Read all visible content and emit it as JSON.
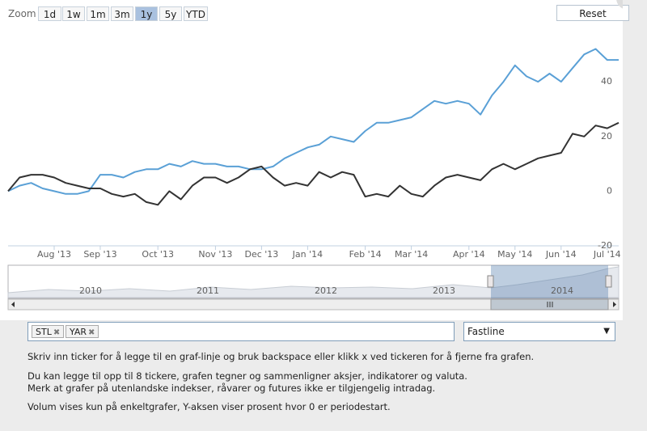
{
  "toolbar": {
    "zoom_label": "Zoom",
    "buttons": [
      "1d",
      "1w",
      "1m",
      "3m",
      "1y",
      "5y",
      "YTD"
    ],
    "active_button": 4,
    "reset": "Reset"
  },
  "chart_data": {
    "type": "line",
    "categories": [
      null,
      null,
      null,
      null,
      "Aug '13",
      null,
      null,
      null,
      "Sep '13",
      null,
      null,
      null,
      null,
      "Oct '13",
      null,
      null,
      null,
      null,
      "Nov '13",
      null,
      null,
      null,
      "Dec '13",
      null,
      null,
      null,
      "Jan '14",
      null,
      null,
      null,
      null,
      "Feb '14",
      null,
      null,
      null,
      "Mar '14",
      null,
      null,
      null,
      null,
      "Apr '14",
      null,
      null,
      null,
      "May '14",
      null,
      null,
      null,
      "Jun '14",
      null,
      null,
      null,
      "Jul '14",
      null
    ],
    "series": [
      {
        "name": "STL",
        "color": "#5aa0d6",
        "values": [
          0,
          2,
          3,
          1,
          0,
          -1,
          -1,
          0,
          6,
          6,
          5,
          7,
          8,
          8,
          10,
          9,
          11,
          10,
          10,
          9,
          9,
          8,
          8,
          9,
          12,
          14,
          16,
          17,
          20,
          19,
          18,
          22,
          25,
          25,
          26,
          27,
          30,
          33,
          32,
          33,
          32,
          28,
          35,
          40,
          46,
          42,
          40,
          43,
          40,
          45,
          50,
          52,
          48,
          48
        ]
      },
      {
        "name": "YAR",
        "color": "#333333",
        "values": [
          0,
          5,
          6,
          6,
          5,
          3,
          2,
          1,
          1,
          -1,
          -2,
          -1,
          -4,
          -5,
          0,
          -3,
          2,
          5,
          5,
          3,
          5,
          8,
          9,
          5,
          2,
          3,
          2,
          7,
          5,
          7,
          6,
          -2,
          -1,
          -2,
          2,
          -1,
          -2,
          2,
          5,
          6,
          5,
          4,
          8,
          10,
          8,
          10,
          12,
          13,
          14,
          21,
          20,
          24,
          23,
          25
        ]
      }
    ],
    "ylim": [
      -20,
      60
    ],
    "yticks": [
      -20,
      0,
      20,
      40
    ],
    "grid": false
  },
  "navigator": {
    "labels": [
      "2010",
      "2011",
      "2012",
      "2013",
      "2014"
    ]
  },
  "form": {
    "select": "Fastline"
  },
  "help": [
    "Skriv inn ticker for å legge til en graf-linje og bruk backspace eller klikk x ved tickeren for å fjerne fra grafen.",
    "Du kan legge til opp til 8 tickere, grafen tegner og sammenligner aksjer, indikatorer og valuta.",
    "Merk at grafer på utenlandske indekser, råvarer og futures ikke er tilgjengelig intradag.",
    "Volum vises kun på enkeltgrafer, Y-aksen viser prosent hvor 0 er periodestart."
  ]
}
